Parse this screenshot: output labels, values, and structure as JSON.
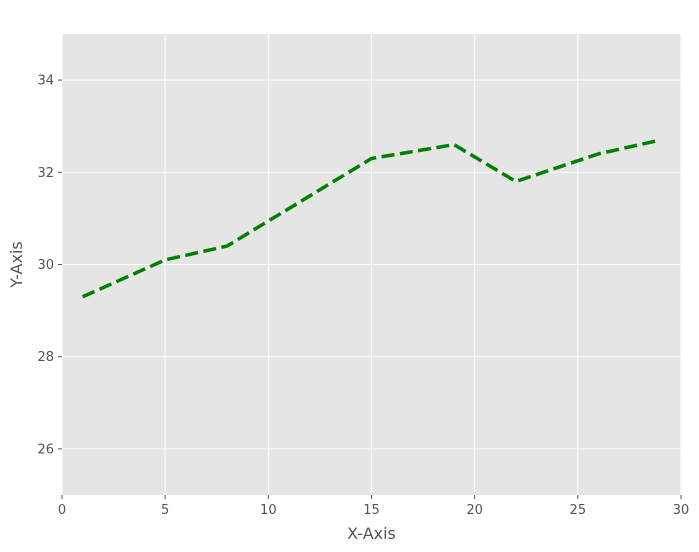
{
  "chart_data": {
    "type": "line",
    "xlabel": "X-Axis",
    "ylabel": "Y-Axis",
    "xlim": [
      0,
      30
    ],
    "ylim": [
      25,
      35
    ],
    "x_ticks": [
      0,
      5,
      10,
      15,
      20,
      25,
      30
    ],
    "y_ticks": [
      26,
      28,
      30,
      32,
      34
    ],
    "grid": true,
    "background_color": "#e5e5e5",
    "series": [
      {
        "color": "#008000",
        "line_style": "dashed",
        "x": [
          1,
          5,
          8,
          15,
          19,
          22,
          26,
          29
        ],
        "y": [
          29.3,
          30.1,
          30.4,
          32.3,
          32.6,
          31.8,
          32.4,
          32.7
        ]
      }
    ]
  }
}
